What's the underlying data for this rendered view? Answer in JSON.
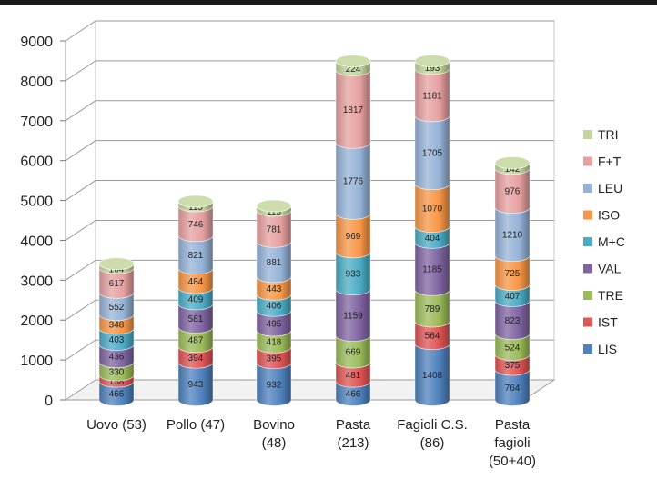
{
  "chart_data": {
    "type": "bar",
    "stacked": true,
    "style": "3d-cylinder",
    "title": "",
    "xlabel": "",
    "ylabel": "",
    "ylim": [
      0,
      9000
    ],
    "yticks": [
      0,
      1000,
      2000,
      3000,
      4000,
      5000,
      6000,
      7000,
      8000,
      9000
    ],
    "grid": true,
    "legend_position": "right",
    "categories": [
      [
        "Uovo (53)"
      ],
      [
        "Pollo (47)"
      ],
      [
        "Bovino",
        "(48)"
      ],
      [
        "Pasta",
        "(213)"
      ],
      [
        "Fagioli C.S.",
        "(86)"
      ],
      [
        "Pasta",
        "fagioli",
        "(50+40)"
      ]
    ],
    "series": [
      {
        "name": "LIS",
        "color": "#4f81bd",
        "values": [
          466,
          943,
          932,
          466,
          1408,
          764
        ]
      },
      {
        "name": "IST",
        "color": "#e05555",
        "values": [
          158,
          394,
          395,
          481,
          564,
          375
        ]
      },
      {
        "name": "TRE",
        "color": "#9bbb59",
        "values": [
          330,
          487,
          418,
          669,
          789,
          524
        ]
      },
      {
        "name": "VAL",
        "color": "#8064a2",
        "values": [
          436,
          581,
          495,
          1159,
          1185,
          823
        ]
      },
      {
        "name": "M+C",
        "color": "#4bacc6",
        "values": [
          403,
          409,
          406,
          933,
          404,
          407
        ]
      },
      {
        "name": "ISO",
        "color": "#f79646",
        "values": [
          348,
          484,
          443,
          969,
          1070,
          725
        ]
      },
      {
        "name": "LEU",
        "color": "#95b3d7",
        "values": [
          552,
          821,
          881,
          1776,
          1705,
          1210
        ]
      },
      {
        "name": "F+T",
        "color": "#e6a0a0",
        "values": [
          617,
          746,
          781,
          1817,
          1181,
          976
        ]
      },
      {
        "name": "TRI",
        "color": "#c3d69b",
        "values": [
          104,
          115,
          115,
          224,
          193,
          142
        ]
      }
    ]
  }
}
